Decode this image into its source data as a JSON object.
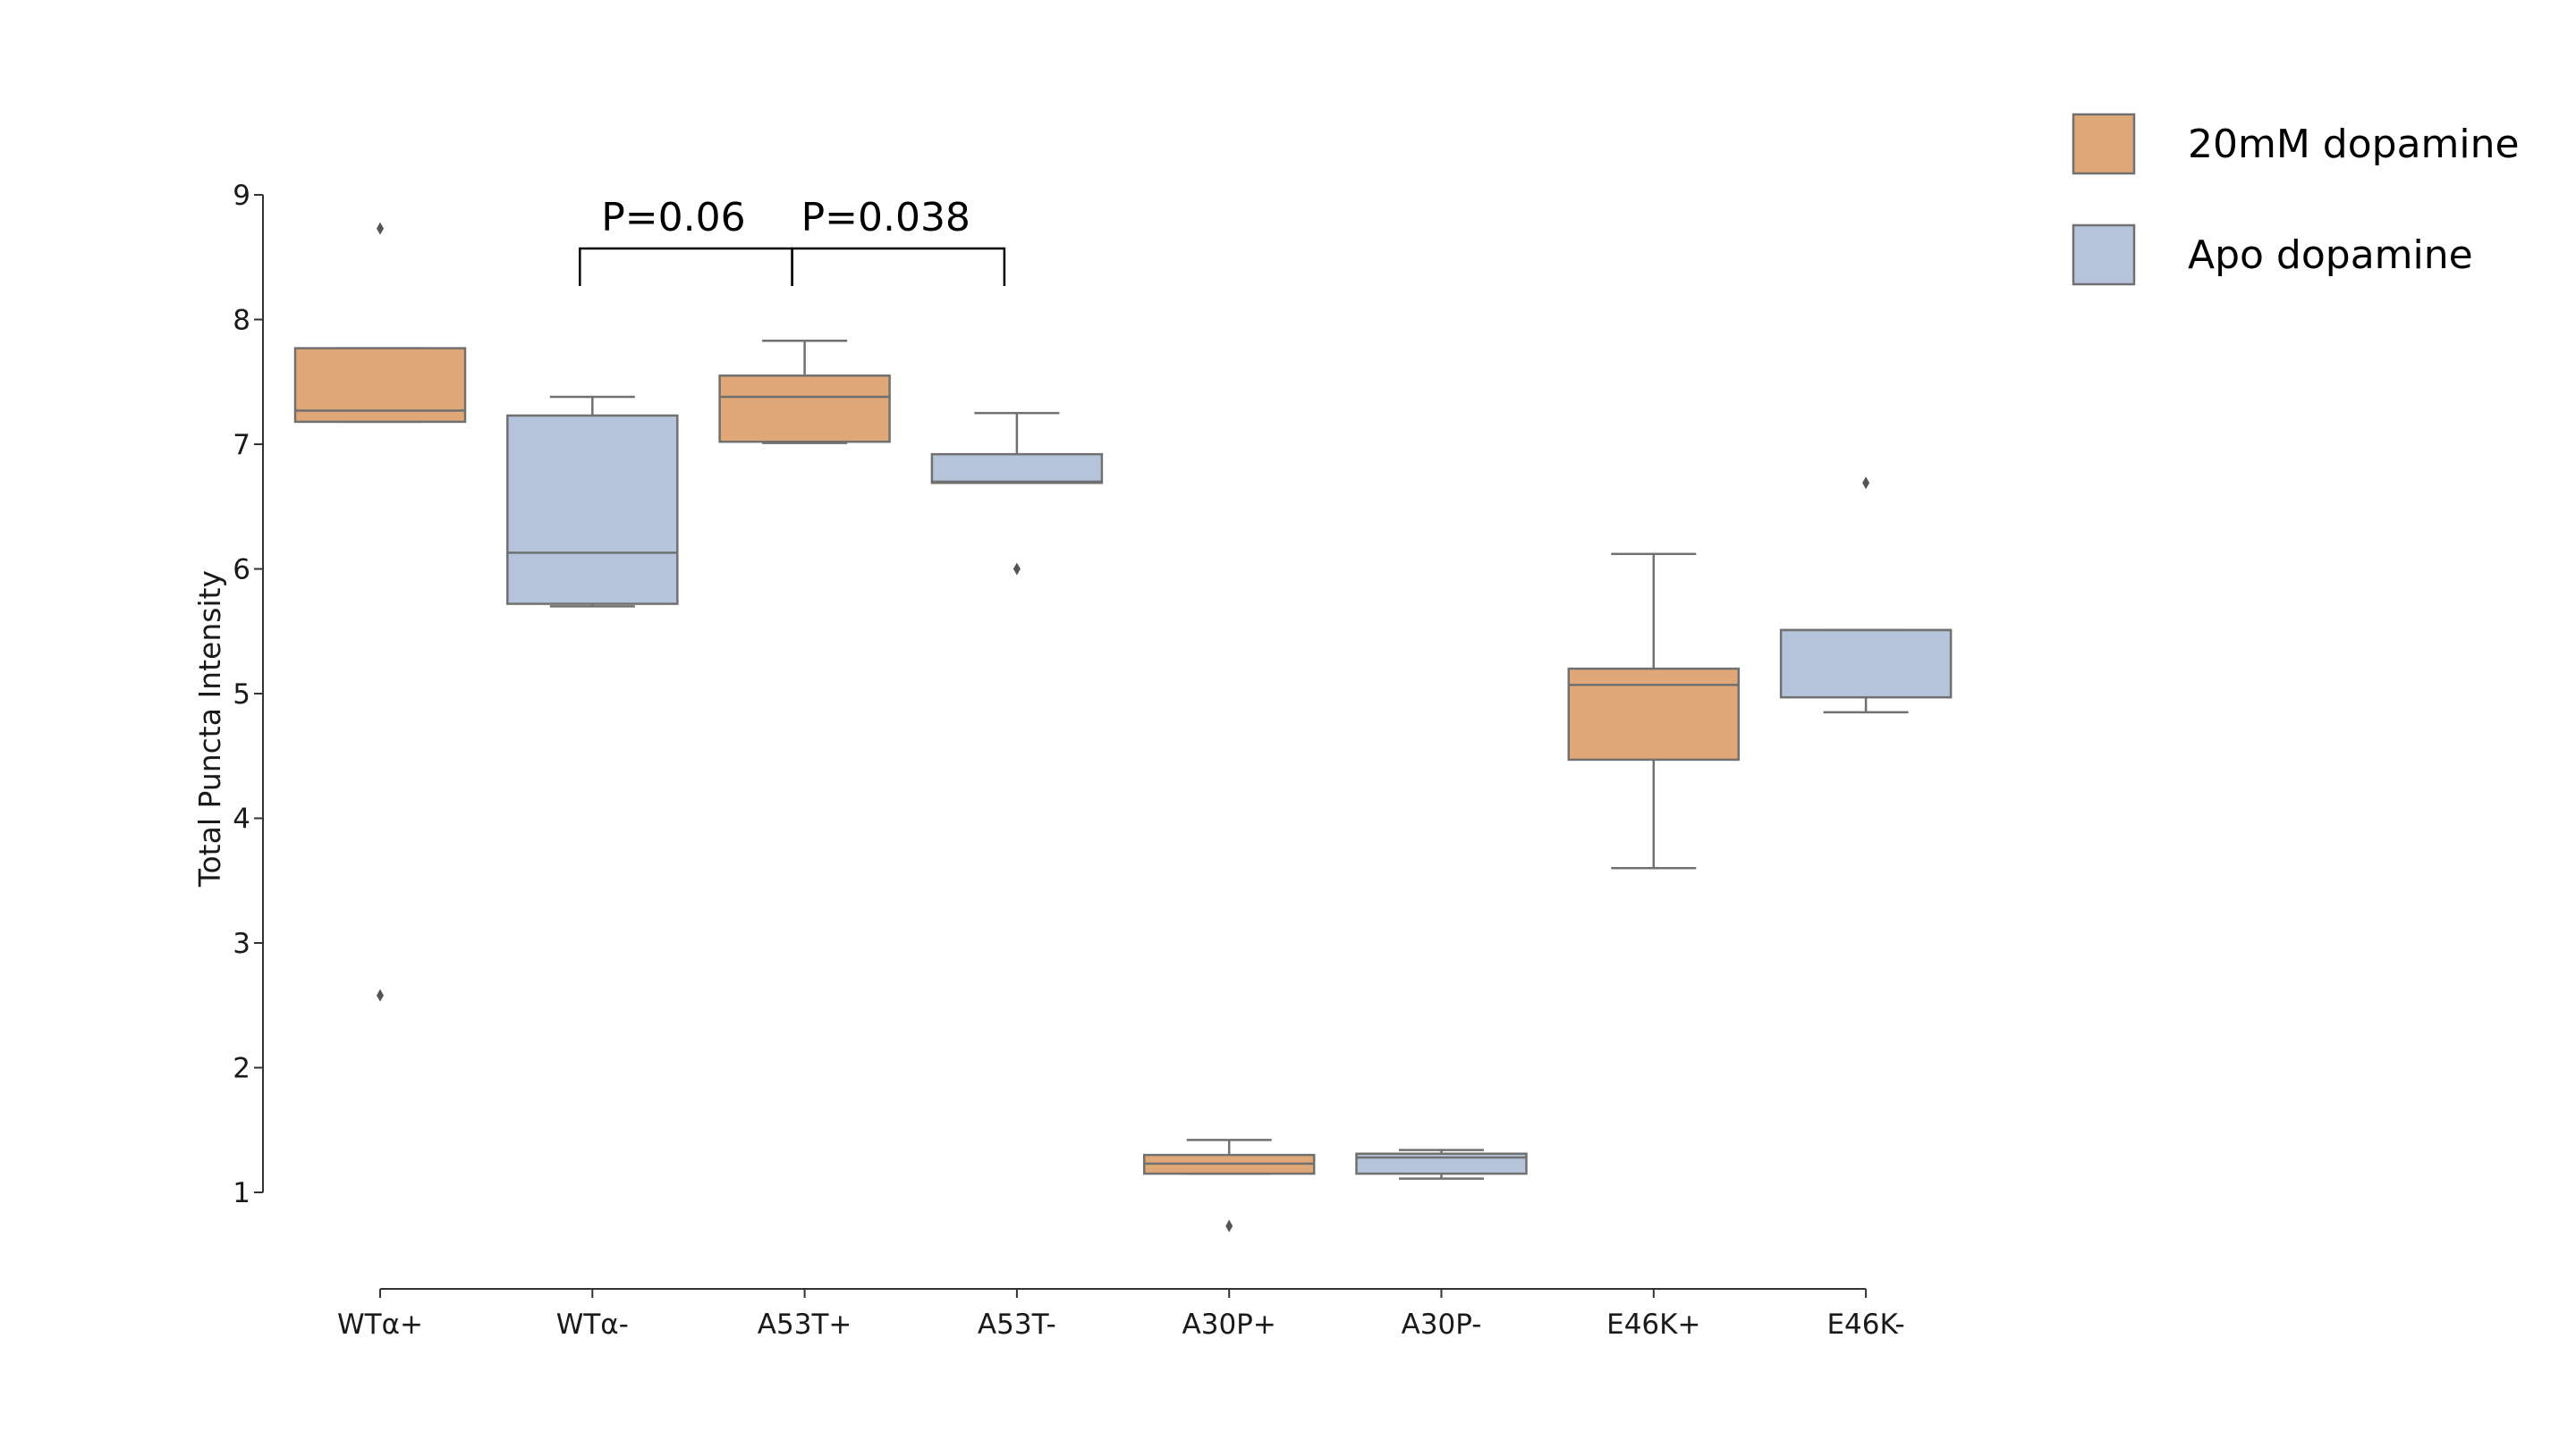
{
  "chart_data": {
    "type": "box",
    "ylabel": "Total Puncta Intensity",
    "xlabel": "",
    "ylim": [
      0.5,
      9.0
    ],
    "yticks": [
      1,
      2,
      3,
      4,
      5,
      6,
      7,
      8,
      9
    ],
    "categories": [
      "WTα+",
      "WTα-",
      "A53T+",
      "A53T-",
      "A30P+",
      "A30P-",
      "E46K+",
      "E46K-"
    ],
    "boxes": [
      {
        "category": "WTα+",
        "group": "20mM dopamine",
        "whisker_low": 7.18,
        "q1": 7.18,
        "median": 7.27,
        "q3": 7.77,
        "whisker_high": 7.77,
        "outliers": [
          8.73,
          2.58
        ]
      },
      {
        "category": "WTα-",
        "group": "Apo dopamine",
        "whisker_low": 5.7,
        "q1": 5.72,
        "median": 6.13,
        "q3": 7.23,
        "whisker_high": 7.38,
        "outliers": []
      },
      {
        "category": "A53T+",
        "group": "20mM dopamine",
        "whisker_low": 7.01,
        "q1": 7.02,
        "median": 7.38,
        "q3": 7.55,
        "whisker_high": 7.83,
        "outliers": []
      },
      {
        "category": "A53T-",
        "group": "Apo dopamine",
        "whisker_low": 6.69,
        "q1": 6.69,
        "median": 6.7,
        "q3": 6.92,
        "whisker_high": 7.25,
        "outliers": [
          6.0
        ]
      },
      {
        "category": "A30P+",
        "group": "20mM dopamine",
        "whisker_low": 1.15,
        "q1": 1.15,
        "median": 1.23,
        "q3": 1.3,
        "whisker_high": 1.42,
        "outliers": [
          0.73
        ]
      },
      {
        "category": "A30P-",
        "group": "Apo dopamine",
        "whisker_low": 1.11,
        "q1": 1.15,
        "median": 1.28,
        "q3": 1.31,
        "whisker_high": 1.34,
        "outliers": []
      },
      {
        "category": "E46K+",
        "group": "20mM dopamine",
        "whisker_low": 3.6,
        "q1": 4.47,
        "median": 5.07,
        "q3": 5.2,
        "whisker_high": 6.12,
        "outliers": []
      },
      {
        "category": "E46K-",
        "group": "Apo dopamine",
        "whisker_low": 4.85,
        "q1": 4.97,
        "median": 5.51,
        "q3": 5.51,
        "whisker_high": 5.51,
        "outliers": [
          6.69
        ]
      }
    ],
    "annotations": [
      {
        "text": "P=0.06",
        "from": "WTα-",
        "to": "A53T+",
        "y": 8.57
      },
      {
        "text": "P=0.038",
        "from": "A53T+",
        "to": "A53T-",
        "y": 8.57
      }
    ],
    "legend": {
      "position": "top-right",
      "entries": [
        {
          "label": "20mM dopamine",
          "color": "#E1A877"
        },
        {
          "label": "Apo dopamine",
          "color": "#B5C4DA"
        }
      ]
    },
    "colors": {
      "20mM dopamine": "#E1A877",
      "Apo dopamine": "#B5C4DA",
      "edge": "#707070",
      "outlier": "#555555"
    },
    "grid": false
  }
}
